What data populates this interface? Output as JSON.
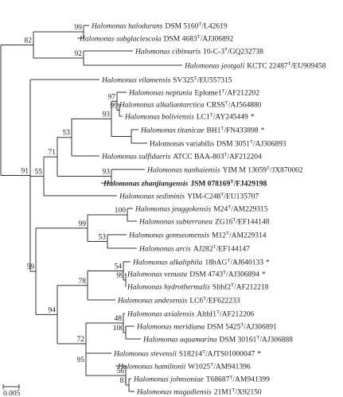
{
  "leaves": [
    {
      "name": "Halomonas halodurans",
      "strain": "DSM 5160",
      "type": "T",
      "accession": "/L42619"
    },
    {
      "name": "Halomonas subglaciescola",
      "strain": "DSM 4683",
      "type": "T",
      "accession": "/AJ306892"
    },
    {
      "name": "Halomonas cibimaris",
      "strain": "10-C-3",
      "type": "T",
      "accession": "/GQ232738"
    },
    {
      "name": "Halomonas jeotgali",
      "strain": "KCTC 22487",
      "type": "T",
      "accession": "/EU909458"
    },
    {
      "name": "Halomonas vilamensis",
      "strain": "SV325",
      "type": "T",
      "accession": "/EU557315"
    },
    {
      "name": "Halomonas neptunia",
      "strain": "Eplume1",
      "type": "T",
      "accession": "/AF212202"
    },
    {
      "name": "Halomonas alkaliantarctica",
      "strain": "CRSS",
      "type": "T",
      "accession": "/AJ564880"
    },
    {
      "name": "Halomonas boliviensis",
      "strain": "LC1",
      "type": "T",
      "accession": "/AY245449",
      "note": "*"
    },
    {
      "name": "Halomonas titanicae",
      "strain": "BH1",
      "type": "T",
      "accession": "/FN433898",
      "note": "*"
    },
    {
      "name": "Halomonas variabilis",
      "strain": "DSM 3051",
      "type": "T",
      "accession": "/AJ306893",
      "italic": false
    },
    {
      "name": "Halomonas sulfidaeris",
      "strain": "ATCC BAA-803",
      "type": "T",
      "accession": "/AF212204"
    },
    {
      "name": "Halomonas nanhaiensis",
      "strain": "YIM M 13059",
      "type": "T",
      "accession": "/JX870002"
    },
    {
      "name": "Halomonas zhanjiangensis",
      "strain": "JSM 078169",
      "type": "T",
      "accession": "/FJ429198",
      "emphasis": true
    },
    {
      "name": "Halomonas sediminis",
      "strain": "YIM-C248",
      "type": "T",
      "accession": "/EU135707"
    },
    {
      "name": "Halomonas jeaggokensis",
      "strain": "M24",
      "type": "T",
      "accession": "/AM229315"
    },
    {
      "name": "Halomonas subterranea",
      "strain": "ZG16",
      "type": "T",
      "accession": "/EF144148"
    },
    {
      "name": "Halomonas gomseomensis",
      "strain": "M12",
      "type": "T",
      "accession": "/AM229314"
    },
    {
      "name": "Halomonas arcis",
      "strain": "AJ282",
      "type": "T",
      "accession": "/EF144147"
    },
    {
      "name": "Halomonas alkaliphila",
      "strain": "18bAG",
      "type": "T",
      "accession": "/AJ640133",
      "note": "*"
    },
    {
      "name": "Halomonas venusta",
      "strain": "DSM 4743",
      "type": "T",
      "accession": "/AJ306894",
      "note": "*"
    },
    {
      "name": "Halomonas hydrothermalis",
      "strain": "Slthf2",
      "type": "T",
      "accession": "/AF212218"
    },
    {
      "name": "Halomonas andesensis",
      "strain": "LC6",
      "type": "T",
      "accession": "/EF622233"
    },
    {
      "name": "Halomonas axialensis",
      "strain": "Althf1",
      "type": "T",
      "accession": "/AF212206"
    },
    {
      "name": "Halomonas meridiana",
      "strain": "DSM 5425",
      "type": "T",
      "accession": "/AJ306891"
    },
    {
      "name": "Halomonas aquamarina",
      "strain": "DSM 30161",
      "type": "T",
      "accession": "/AJ306888"
    },
    {
      "name": "Halomonas stevensii",
      "strain": "S18214",
      "type": "T",
      "accession": "/AJTS01000047",
      "note": "*"
    },
    {
      "name": "Halomonas hamiltonii",
      "strain": "W1025",
      "type": "T",
      "accession": "/AM941396"
    },
    {
      "name": "Halomonas johnsoniae",
      "strain": "T68687",
      "type": "T",
      "accession": "/AM941399"
    },
    {
      "name": "Halomonas magadiensis",
      "strain": "21M1",
      "type": "T",
      "accession": "/X92150"
    }
  ],
  "support": [
    99,
    82,
    92,
    97,
    99,
    93,
    53,
    71,
    93,
    55,
    91,
    100,
    99,
    53,
    59,
    54,
    99,
    78,
    94,
    48,
    100,
    72,
    95,
    56,
    81
  ],
  "scale_label": "0.005"
}
